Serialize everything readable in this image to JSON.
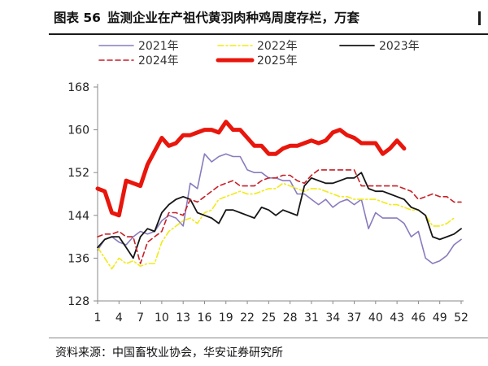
{
  "title": {
    "figure_label": "图表 56",
    "text": "监测企业在产祖代黄羽肉种鸡周度存栏，万套"
  },
  "source": "资料来源：中国畜牧业协会，华安证券研究所",
  "chart_data": {
    "type": "line",
    "title": "监测企业在产祖代黄羽肉种鸡周度存栏，万套",
    "xlabel": "",
    "ylabel": "",
    "ylim": [
      128,
      168
    ],
    "yticks": [
      128,
      136,
      144,
      152,
      160,
      168
    ],
    "xlim": [
      1,
      52
    ],
    "xticks": [
      1,
      4,
      7,
      10,
      13,
      16,
      19,
      22,
      25,
      28,
      31,
      34,
      37,
      40,
      43,
      46,
      49,
      52
    ],
    "series": [
      {
        "name": "2021年",
        "color": "#8a7bbd",
        "style": "solid",
        "width": 1.6,
        "values": [
          137.5,
          139.5,
          140,
          139,
          138.5,
          140,
          141,
          140.5,
          141,
          143,
          144,
          143.5,
          142,
          150,
          149,
          155.5,
          154,
          155,
          155.5,
          155,
          155,
          152.5,
          152,
          152,
          151,
          151,
          150.5,
          150.5,
          148,
          148,
          147,
          146,
          147,
          145.5,
          146.5,
          147,
          146,
          147,
          141.5,
          144.5,
          143.5,
          143.5,
          143.5,
          142.5,
          140,
          141,
          136,
          135,
          135.5,
          136.5,
          138.5,
          139.5
        ]
      },
      {
        "name": "2022年",
        "color": "#f2ea18",
        "style": "dashdot",
        "width": 1.6,
        "values": [
          138,
          136,
          134,
          136,
          135,
          135.5,
          134.5,
          135,
          135,
          139,
          141,
          142,
          143,
          143.5,
          142.5,
          144.5,
          145,
          147,
          147.5,
          148,
          148.5,
          148,
          148,
          148.5,
          149,
          149,
          150,
          149.5,
          149,
          148.5,
          149,
          149,
          148.5,
          148,
          147.5,
          147.5,
          147,
          147,
          147,
          147,
          146.5,
          146,
          146,
          145.5,
          145,
          145,
          144,
          142,
          142,
          142.5,
          143.5
        ]
      },
      {
        "name": "2023年",
        "color": "#151515",
        "style": "solid",
        "width": 1.8,
        "values": [
          138,
          139.5,
          140,
          140,
          138,
          136,
          140,
          141.5,
          141,
          144.5,
          146,
          147,
          147.5,
          147,
          144.5,
          144,
          143.5,
          142.5,
          145,
          145,
          144.5,
          144,
          143.5,
          145.5,
          145,
          144,
          145,
          144.5,
          144,
          149.5,
          151,
          150.5,
          150,
          150,
          150.5,
          151,
          151,
          152,
          149,
          148.5,
          148.5,
          148,
          147.5,
          147,
          145.5,
          145,
          144,
          140,
          139.5,
          140,
          140.5,
          141.5
        ]
      },
      {
        "name": "2024年",
        "color": "#c61f26",
        "style": "dashed",
        "width": 1.6,
        "values": [
          140,
          140.5,
          140.5,
          141,
          140,
          140,
          135,
          139,
          140,
          141,
          144.5,
          144.5,
          144,
          147,
          146.5,
          147.5,
          148.5,
          149.5,
          150,
          150.5,
          149.5,
          149.5,
          149.5,
          150.5,
          151,
          151,
          151.5,
          151.5,
          150.5,
          150,
          151.5,
          152.5,
          152.5,
          152.5,
          152.5,
          152.5,
          152.5,
          149.5,
          149.5,
          149.5,
          149.5,
          149.5,
          149.5,
          149,
          148.5,
          147,
          147.5,
          148,
          147.5,
          147.5,
          146.5,
          146.5
        ]
      },
      {
        "name": "2025年",
        "color": "#e8160c",
        "style": "solid",
        "width": 5,
        "values": [
          149,
          148.5,
          144.5,
          144,
          150.5,
          150,
          149.5,
          153.5,
          156,
          158.5,
          157,
          157.5,
          159,
          159,
          159.5,
          160,
          160,
          159.5,
          161.5,
          160,
          160,
          158.5,
          157,
          157,
          155.5,
          155.5,
          156.5,
          157,
          157,
          157.5,
          158,
          157.5,
          158,
          159.5,
          160,
          159,
          158.5,
          157.5,
          157.5,
          157.5,
          155.5,
          156.5,
          158,
          156.5
        ]
      }
    ]
  }
}
